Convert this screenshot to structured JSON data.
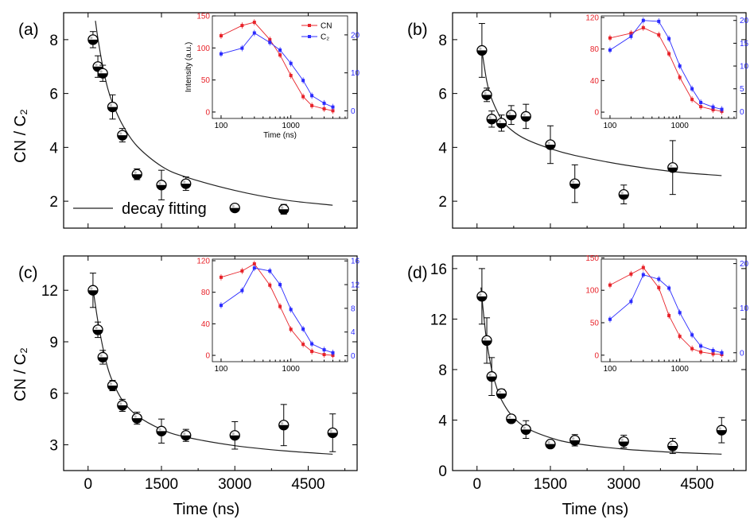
{
  "figure": {
    "ylabel_main": "CN / C₂",
    "xlabel_main": "Time (ns)",
    "inset_ylabel": "Intensity (a.u.)",
    "inset_xlabel": "Time (ns)",
    "legend_fit_label": "decay fitting",
    "inset_legend": [
      "CN",
      "C₂"
    ],
    "colors": {
      "cn": "#e8232a",
      "c2": "#2b2bff",
      "marker": "#000000"
    }
  },
  "chart_data": [
    {
      "panel": "(a)",
      "type": "scatter",
      "xlim": [
        -500,
        5500
      ],
      "ylim": [
        1,
        9
      ],
      "xticks": [
        0,
        1500,
        3000,
        4500
      ],
      "yticks": [
        2,
        4,
        6,
        8
      ],
      "xticks_labeled": false,
      "xtitle": false,
      "points": [
        [
          100,
          8.0,
          0.3
        ],
        [
          200,
          7.0,
          0.4
        ],
        [
          300,
          6.75,
          0.3
        ],
        [
          500,
          5.5,
          0.45
        ],
        [
          700,
          4.45,
          0.25
        ],
        [
          1000,
          3.0,
          0.2
        ],
        [
          1500,
          2.6,
          0.55
        ],
        [
          2000,
          2.65,
          0.25
        ],
        [
          3000,
          1.75,
          0.12
        ],
        [
          4000,
          1.7,
          0.18
        ]
      ],
      "fit": [
        [
          150,
          8.7
        ],
        [
          200,
          8.05
        ],
        [
          300,
          7.0
        ],
        [
          400,
          6.2
        ],
        [
          500,
          5.65
        ],
        [
          700,
          4.85
        ],
        [
          1000,
          4.05
        ],
        [
          1500,
          3.3
        ],
        [
          2000,
          2.9
        ],
        [
          3000,
          2.4
        ],
        [
          4000,
          2.05
        ],
        [
          5000,
          1.85
        ]
      ],
      "inset": {
        "time": [
          100,
          200,
          300,
          500,
          700,
          1000,
          1500,
          2000,
          3000,
          4000
        ],
        "cn": [
          119,
          135,
          140,
          113,
          89,
          57,
          24,
          10,
          5,
          2
        ],
        "c2": [
          15.0,
          16.5,
          20.5,
          18.0,
          16.0,
          12.5,
          8.0,
          4.0,
          2.0,
          1.0
        ],
        "left_ticks": [
          0,
          50,
          100,
          150
        ],
        "left_lim": [
          -10,
          150
        ],
        "right_ticks": [
          0,
          10,
          20
        ],
        "right_lim": [
          -2,
          25
        ]
      }
    },
    {
      "panel": "(b)",
      "type": "scatter",
      "xlim": [
        -500,
        5500
      ],
      "ylim": [
        1,
        9
      ],
      "xticks": [
        0,
        1500,
        3000,
        4500
      ],
      "yticks": [
        2,
        4,
        6,
        8
      ],
      "xticks_labeled": false,
      "xtitle": false,
      "points": [
        [
          100,
          7.6,
          1.0
        ],
        [
          200,
          5.95,
          0.25
        ],
        [
          300,
          5.05,
          0.3
        ],
        [
          500,
          4.9,
          0.3
        ],
        [
          700,
          5.2,
          0.35
        ],
        [
          1000,
          5.15,
          0.45
        ],
        [
          1500,
          4.1,
          0.7
        ],
        [
          2000,
          2.65,
          0.7
        ],
        [
          3000,
          2.25,
          0.35
        ],
        [
          4000,
          3.25,
          1.0
        ]
      ],
      "fit": [
        [
          100,
          7.6
        ],
        [
          200,
          6.45
        ],
        [
          300,
          5.8
        ],
        [
          500,
          5.05
        ],
        [
          700,
          4.65
        ],
        [
          1000,
          4.3
        ],
        [
          1500,
          3.95
        ],
        [
          2000,
          3.7
        ],
        [
          3000,
          3.35
        ],
        [
          4000,
          3.1
        ],
        [
          5000,
          2.95
        ]
      ],
      "inset": {
        "time": [
          100,
          200,
          300,
          500,
          700,
          1000,
          1500,
          2000,
          3000,
          4000
        ],
        "cn": [
          94,
          100,
          107,
          98,
          74,
          44,
          16,
          7,
          3,
          1
        ],
        "c2": [
          13.5,
          16.5,
          20.0,
          19.8,
          16.0,
          10.0,
          5.0,
          2.0,
          1.0,
          0.5
        ],
        "left_ticks": [
          0,
          40,
          80,
          120
        ],
        "left_lim": [
          -8,
          122
        ],
        "right_ticks": [
          0,
          5,
          10,
          15,
          20
        ],
        "right_lim": [
          -1.5,
          21
        ]
      }
    },
    {
      "panel": "(c)",
      "type": "scatter",
      "xlim": [
        -500,
        5500
      ],
      "ylim": [
        1.5,
        14
      ],
      "xticks": [
        0,
        1500,
        3000,
        4500
      ],
      "yticks": [
        3,
        6,
        9,
        12
      ],
      "xticks_labeled": true,
      "xtitle": true,
      "points": [
        [
          100,
          12.0,
          1.0
        ],
        [
          200,
          9.7,
          0.45
        ],
        [
          300,
          8.1,
          0.4
        ],
        [
          500,
          6.45,
          0.3
        ],
        [
          700,
          5.3,
          0.35
        ],
        [
          1000,
          4.55,
          0.35
        ],
        [
          1500,
          3.8,
          0.7
        ],
        [
          2000,
          3.55,
          0.35
        ],
        [
          3000,
          3.55,
          0.8
        ],
        [
          4000,
          4.15,
          1.2
        ],
        [
          5000,
          3.7,
          1.1
        ]
      ],
      "fit": [
        [
          100,
          12.1
        ],
        [
          200,
          10.2
        ],
        [
          300,
          8.7
        ],
        [
          400,
          7.5
        ],
        [
          500,
          6.7
        ],
        [
          700,
          5.6
        ],
        [
          1000,
          4.7
        ],
        [
          1500,
          3.9
        ],
        [
          2000,
          3.45
        ],
        [
          3000,
          2.95
        ],
        [
          4000,
          2.65
        ],
        [
          5000,
          2.45
        ]
      ],
      "inset": {
        "time": [
          100,
          200,
          300,
          500,
          700,
          1000,
          1500,
          2000,
          3000,
          4000
        ],
        "cn": [
          99,
          107,
          116,
          89,
          62,
          33,
          14,
          5,
          1,
          0
        ],
        "c2": [
          8.5,
          11.0,
          14.8,
          14.3,
          12.0,
          7.8,
          4.5,
          2.0,
          1.0,
          0.5
        ],
        "left_ticks": [
          0,
          40,
          80,
          120
        ],
        "left_lim": [
          -8,
          122
        ],
        "right_ticks": [
          0,
          4,
          8,
          12,
          16
        ],
        "right_lim": [
          -1,
          16.3
        ]
      }
    },
    {
      "panel": "(d)",
      "type": "scatter",
      "xlim": [
        -500,
        5500
      ],
      "ylim": [
        0,
        17
      ],
      "xticks": [
        0,
        1500,
        3000,
        4500
      ],
      "yticks": [
        0,
        4,
        8,
        12,
        16
      ],
      "xticks_labeled": true,
      "xtitle": true,
      "points": [
        [
          100,
          13.8,
          2.2
        ],
        [
          200,
          10.3,
          1.8
        ],
        [
          300,
          7.45,
          1.5
        ],
        [
          500,
          6.1,
          0.35
        ],
        [
          700,
          4.1,
          0.3
        ],
        [
          1000,
          3.25,
          0.7
        ],
        [
          1500,
          2.1,
          0.3
        ],
        [
          2000,
          2.4,
          0.45
        ],
        [
          3000,
          2.3,
          0.5
        ],
        [
          4000,
          1.95,
          0.6
        ],
        [
          5000,
          3.2,
          1.0
        ]
      ],
      "fit": [
        [
          80,
          14.5
        ],
        [
          150,
          11.8
        ],
        [
          200,
          10.2
        ],
        [
          300,
          8.0
        ],
        [
          400,
          6.6
        ],
        [
          500,
          5.6
        ],
        [
          700,
          4.4
        ],
        [
          1000,
          3.4
        ],
        [
          1500,
          2.6
        ],
        [
          2000,
          2.15
        ],
        [
          3000,
          1.7
        ],
        [
          4000,
          1.45
        ],
        [
          5000,
          1.3
        ]
      ],
      "inset": {
        "time": [
          100,
          200,
          300,
          500,
          700,
          1000,
          1500,
          2000,
          3000,
          4000
        ],
        "cn": [
          108,
          125,
          135,
          104,
          61,
          29,
          10,
          5,
          2,
          1
        ],
        "c2": [
          7.5,
          11.5,
          17.5,
          16.5,
          14.5,
          9.0,
          4.0,
          1.5,
          0.5,
          0.0
        ],
        "left_ticks": [
          0,
          50,
          100,
          150
        ],
        "left_lim": [
          -10,
          148
        ],
        "right_ticks": [
          0,
          10,
          20
        ],
        "right_lim": [
          -2,
          21
        ]
      }
    }
  ]
}
